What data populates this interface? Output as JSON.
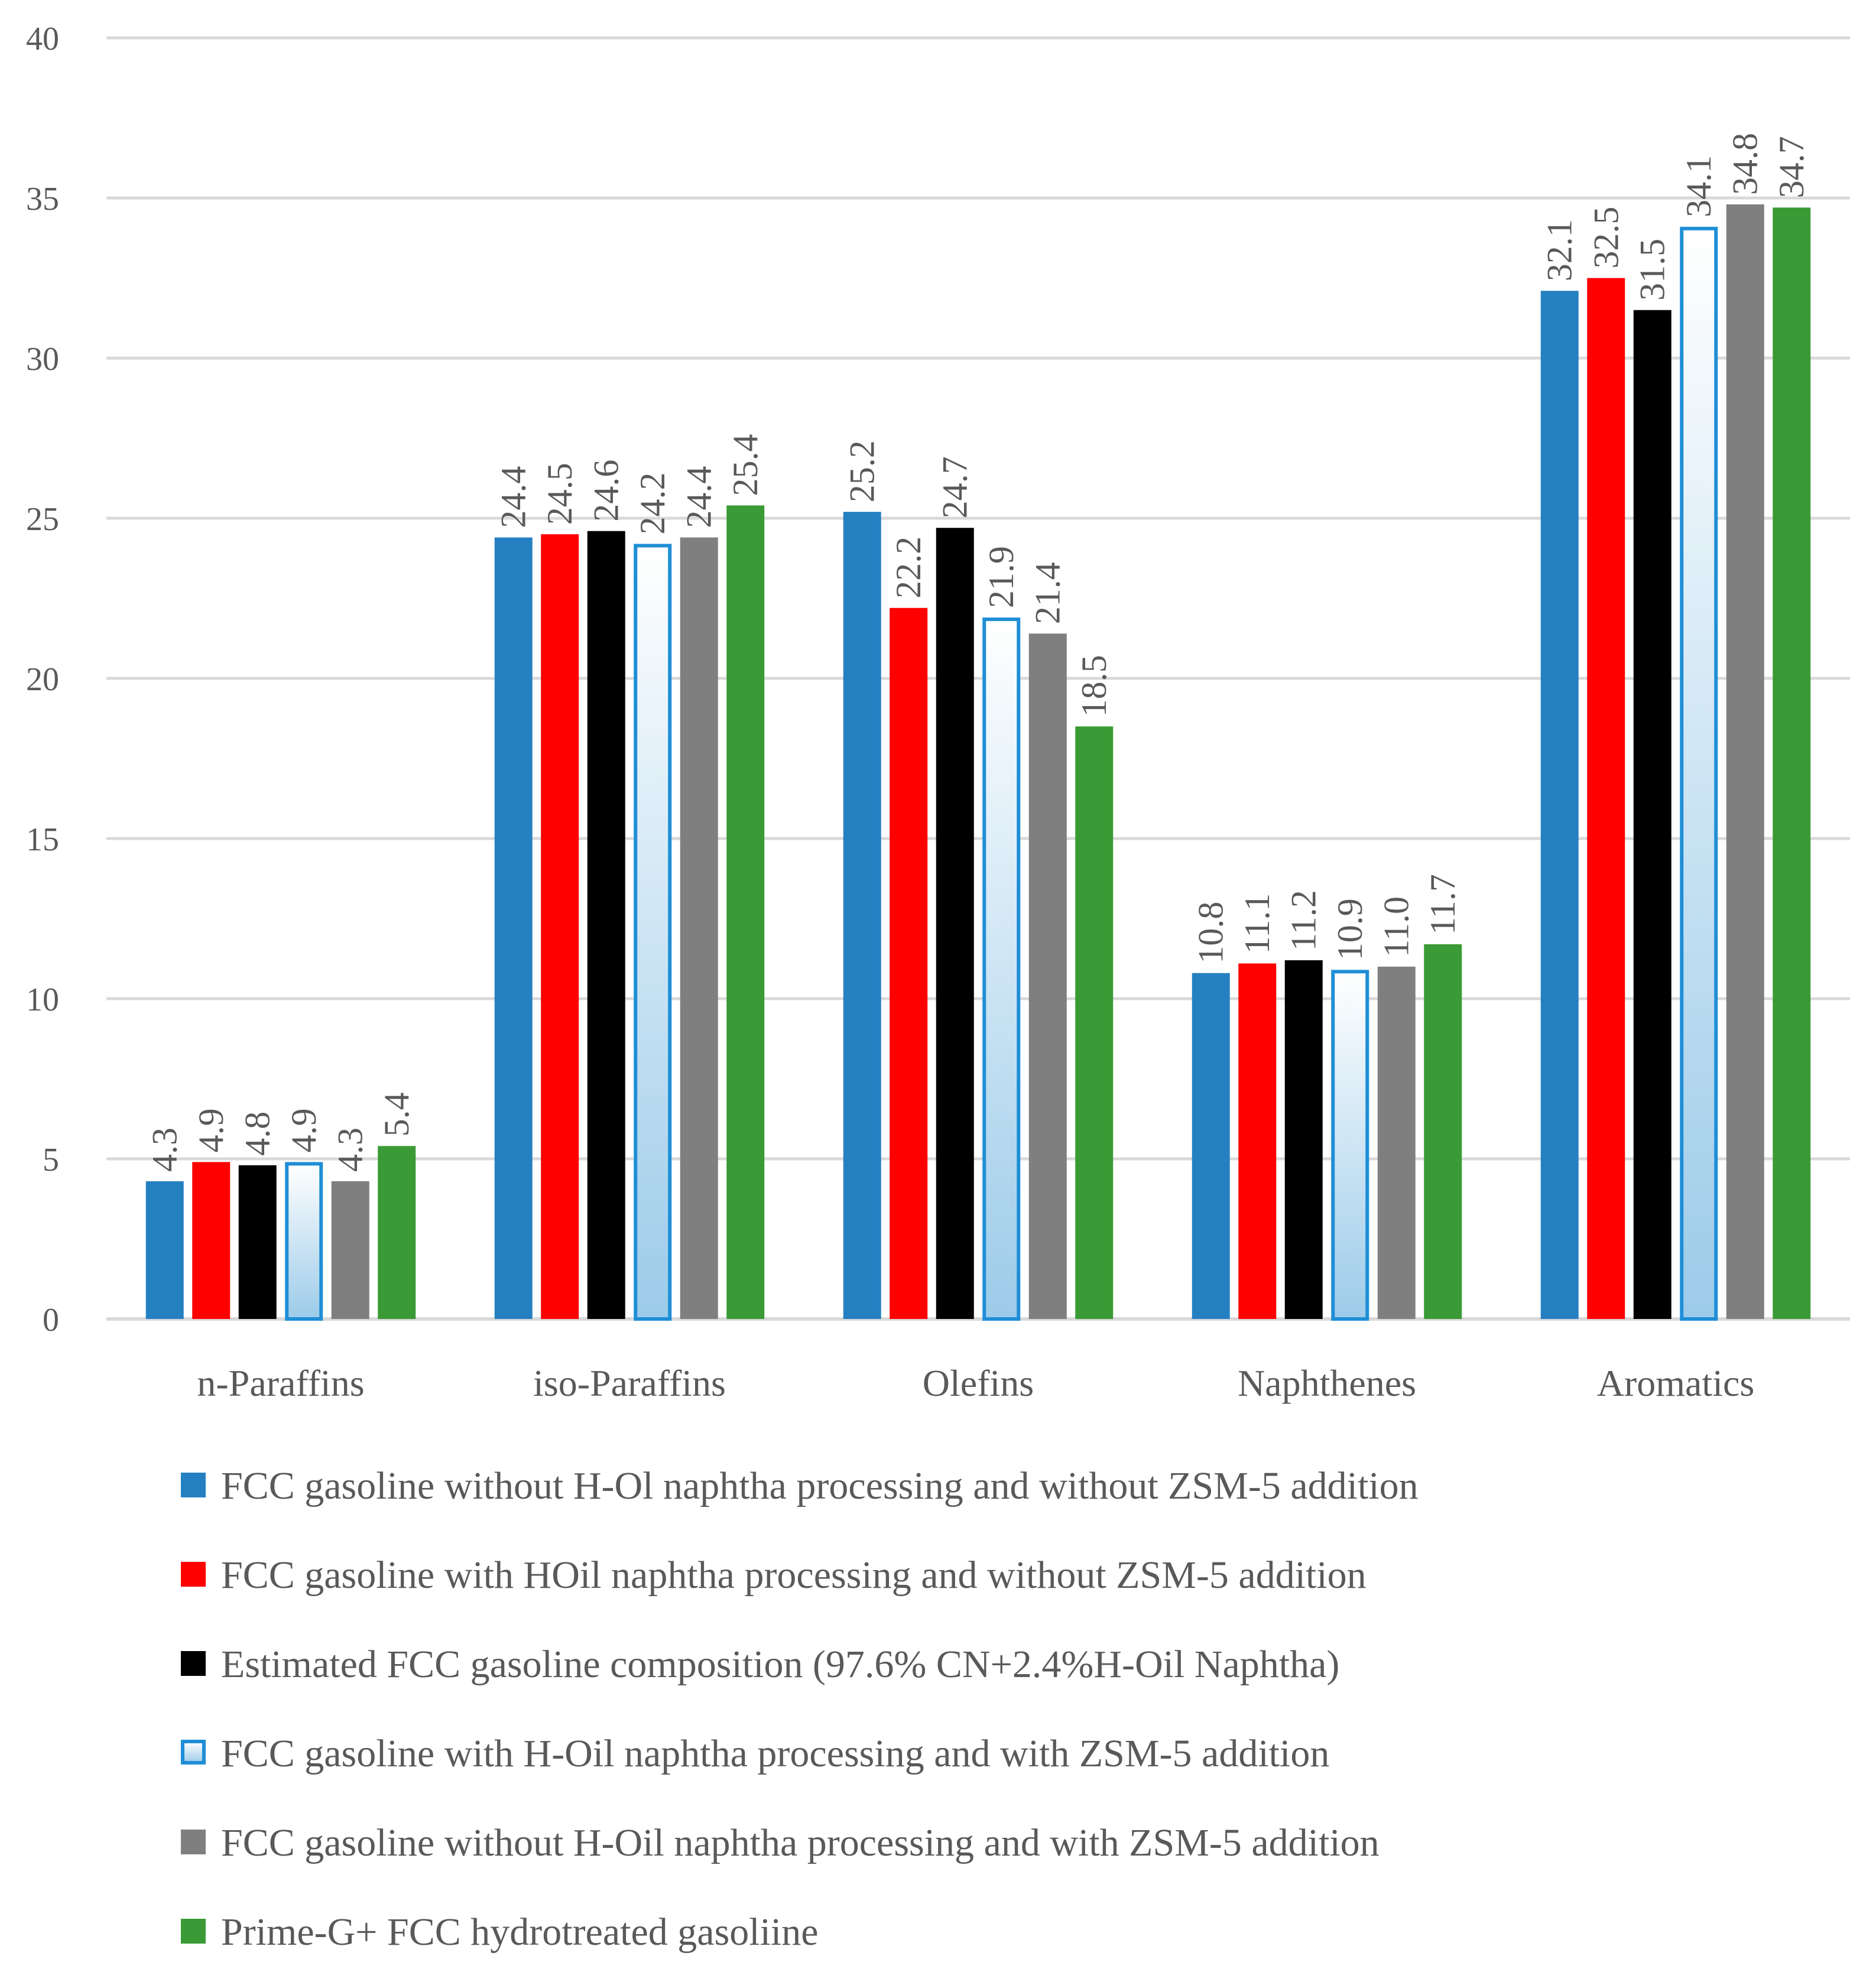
{
  "chart_data": {
    "type": "bar",
    "title": "",
    "xlabel": "",
    "ylabel": "",
    "ylim": [
      0,
      40
    ],
    "yticks": [
      0,
      5,
      10,
      15,
      20,
      25,
      30,
      35,
      40
    ],
    "grid": true,
    "legend_position": "bottom",
    "categories": [
      "n-Paraffins",
      "iso-Paraffins",
      "Olefins",
      "Naphthenes",
      "Aromatics"
    ],
    "series": [
      {
        "name": "FCC gasoline without H-Ol naphtha processing and without ZSM-5 addition",
        "color": "#2580c2",
        "style": "solid",
        "values": [
          4.3,
          24.4,
          25.2,
          10.8,
          32.1
        ],
        "labels": [
          "4.3",
          "24.4",
          "25.2",
          "10.8",
          "32.1"
        ]
      },
      {
        "name": "FCC gasoline with HOil naphtha processing and without ZSM-5 addition",
        "color": "#ff0000",
        "style": "solid",
        "values": [
          4.9,
          24.5,
          22.2,
          11.1,
          32.5
        ],
        "labels": [
          "4.9",
          "24.5",
          "22.2",
          "11.1",
          "32.5"
        ]
      },
      {
        "name": "Estimated FCC gasoline composition (97.6% CN+2.4%H-Oil Naphtha)",
        "color": "#000000",
        "style": "solid",
        "values": [
          4.8,
          24.6,
          24.7,
          11.2,
          31.5
        ],
        "labels": [
          "4.8",
          "24.6",
          "24.7",
          "11.2",
          "31.5"
        ]
      },
      {
        "name": "FCC gasoline with H-Oil naphtha processing and with ZSM-5 addition",
        "color": "#1f8ed6",
        "style": "gradient",
        "values": [
          4.9,
          24.2,
          21.9,
          10.9,
          34.1
        ],
        "labels": [
          "4.9",
          "24.2",
          "21.9",
          "10.9",
          "34.1"
        ]
      },
      {
        "name": "FCC gasoline without H-Oil naphtha processing and with ZSM-5 addition",
        "color": "#7f7f7f",
        "style": "solid",
        "values": [
          4.3,
          24.4,
          21.4,
          11.0,
          34.8
        ],
        "labels": [
          "4.3",
          "24.4",
          "21.4",
          "11.0",
          "34.8"
        ]
      },
      {
        "name": "Prime-G+ FCC hydrotreated gasoliine",
        "color": "#3a9a35",
        "style": "solid",
        "label_color": "#000000",
        "values": [
          5.4,
          25.4,
          18.5,
          11.7,
          34.7
        ],
        "labels": [
          "5.4",
          "25.4",
          "18.5",
          "11.7",
          "34.7"
        ]
      }
    ]
  }
}
